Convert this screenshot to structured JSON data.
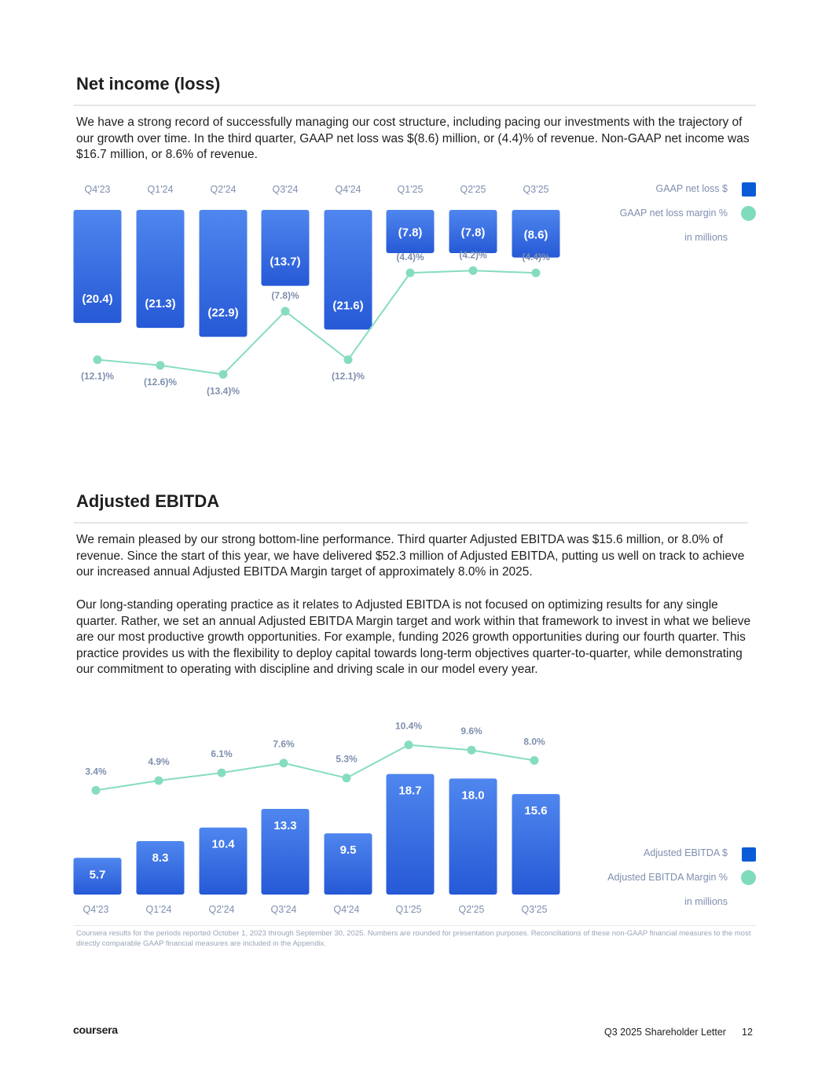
{
  "section1": {
    "title": "Net income (loss)",
    "paragraph": "We have a strong record of successfully managing our cost structure, including pacing our investments with the trajectory of our growth over time. In the third quarter, GAAP net loss was $(8.6) million, or (4.4)% of revenue. Non-GAAP net income was $16.7 million, or 8.6% of revenue.",
    "legend": {
      "bars": "GAAP net loss $",
      "line": "GAAP net loss margin %",
      "units": "in millions"
    }
  },
  "section2": {
    "title": "Adjusted EBITDA",
    "paragraph1": "We remain pleased by our strong bottom-line performance. Third quarter Adjusted EBITDA was $15.6 million, or 8.0% of revenue. Since the start of this year, we have delivered $52.3 million of Adjusted EBITDA, putting us well on track to achieve our increased annual Adjusted EBITDA Margin target of approximately 8.0% in 2025.",
    "paragraph2": "Our long-standing operating practice as it relates to Adjusted EBITDA is not focused on optimizing results for any single quarter. Rather, we set an annual Adjusted EBITDA Margin target and work within that framework to invest in what we believe are our most productive growth opportunities. For example, funding 2026 growth opportunities during our fourth quarter. This practice provides us with the flexibility to deploy capital towards long-term objectives quarter-to-quarter, while demonstrating our commitment to operating with discipline and driving scale in our model every year.",
    "legend": {
      "bars": "Adjusted EBITDA $",
      "line": "Adjusted EBITDA Margin %",
      "units": "in millions"
    }
  },
  "footnote": "Coursera results for the periods reported October 1, 2023 through September 30, 2025. Numbers are rounded for presentation purposes. Reconciliations of these non-GAAP financial measures to the most directly comparable GAAP financial measures are included in the Appendix.",
  "footer": {
    "logo": "coursera",
    "doc_title": "Q3 2025 Shareholder Letter",
    "page_number": "12"
  },
  "colors": {
    "bar": "#2f6ae0",
    "bar_light": "#4f86ee",
    "line": "#86dcc0",
    "axis_text": "#7f8faf"
  },
  "chart_data": [
    {
      "type": "bar",
      "title": "Net income (loss)",
      "categories": [
        "Q4'23",
        "Q1'24",
        "Q2'24",
        "Q3'24",
        "Q4'24",
        "Q1'25",
        "Q2'25",
        "Q3'25"
      ],
      "series": [
        {
          "name": "GAAP net loss $",
          "unit": "in millions",
          "values": [
            -20.4,
            -21.3,
            -22.9,
            -13.7,
            -21.6,
            -7.8,
            -7.8,
            -8.6
          ],
          "labels": [
            "(20.4)",
            "(21.3)",
            "(22.9)",
            "(13.7)",
            "(21.6)",
            "(7.8)",
            "(7.8)",
            "(8.6)"
          ]
        },
        {
          "name": "GAAP net loss margin %",
          "type": "line",
          "values": [
            -12.1,
            -12.6,
            -13.4,
            -7.8,
            -12.1,
            -4.4,
            -4.2,
            -4.4
          ],
          "labels": [
            "(12.1)%",
            "(12.6)%",
            "(13.4)%",
            "(7.8)%",
            "(12.1)%",
            "(4.4)%",
            "(4.2)%",
            "(4.4)%"
          ]
        }
      ],
      "legend_position": "top-right"
    },
    {
      "type": "bar",
      "title": "Adjusted EBITDA",
      "categories": [
        "Q4'23",
        "Q1'24",
        "Q2'24",
        "Q3'24",
        "Q4'24",
        "Q1'25",
        "Q2'25",
        "Q3'25"
      ],
      "series": [
        {
          "name": "Adjusted EBITDA $",
          "unit": "in millions",
          "values": [
            5.7,
            8.3,
            10.4,
            13.3,
            9.5,
            18.7,
            18.0,
            15.6
          ],
          "labels": [
            "5.7",
            "8.3",
            "10.4",
            "13.3",
            "9.5",
            "18.7",
            "18.0",
            "15.6"
          ]
        },
        {
          "name": "Adjusted EBITDA Margin %",
          "type": "line",
          "values": [
            3.4,
            4.9,
            6.1,
            7.6,
            5.3,
            10.4,
            9.6,
            8.0
          ],
          "labels": [
            "3.4%",
            "4.9%",
            "6.1%",
            "7.6%",
            "5.3%",
            "10.4%",
            "9.6%",
            "8.0%"
          ]
        }
      ],
      "legend_position": "bottom-right"
    }
  ]
}
